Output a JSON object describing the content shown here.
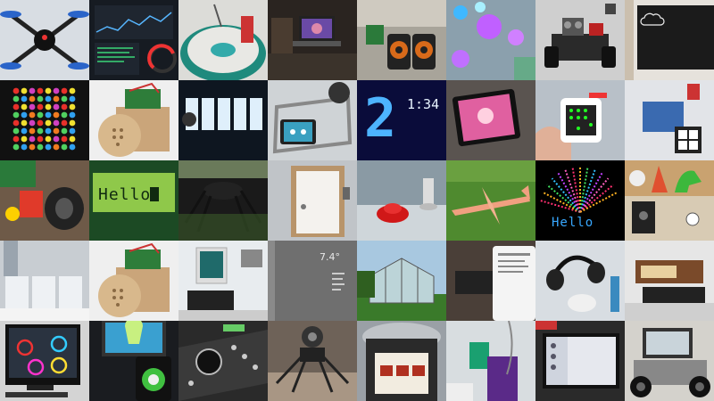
{
  "tiles": {
    "lcd_hello": "Hello",
    "matrix_hello": "Hello",
    "big_digit": "2",
    "clock_time": "1:34",
    "mirror_temp": "7.4°"
  }
}
